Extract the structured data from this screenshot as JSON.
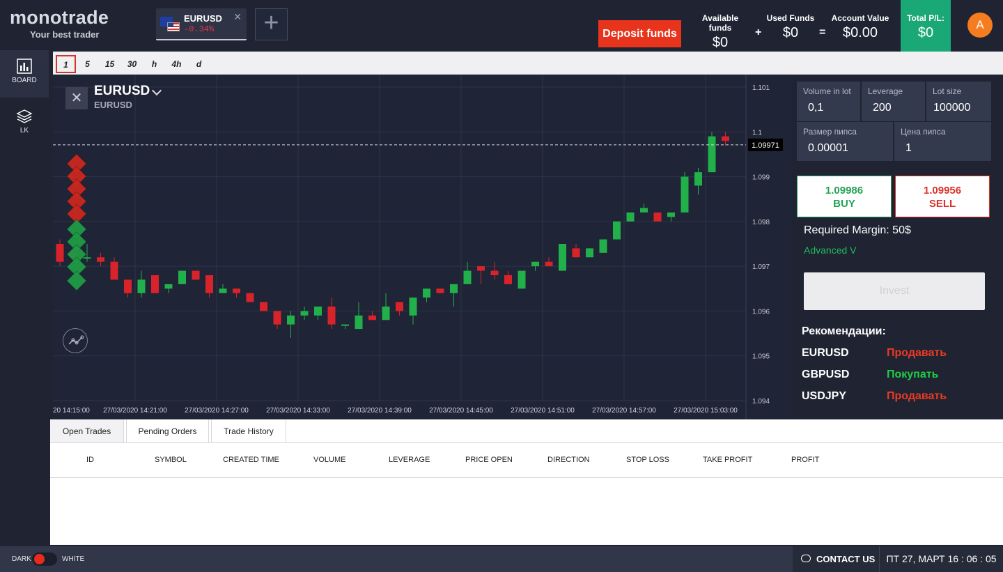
{
  "header": {
    "brand": "monotrade",
    "tagline": "Your best trader",
    "tab": {
      "symbol": "EURUSD",
      "change": "-0.34%",
      "close": "✕"
    },
    "add_tab": "+",
    "deposit_label": "Deposit funds",
    "funds": [
      {
        "label": "Available funds",
        "value": "$0"
      },
      {
        "label": "Used Funds",
        "value": "$0"
      },
      {
        "label": "Account Value",
        "value": "$0.00"
      }
    ],
    "operators": [
      "+",
      "="
    ],
    "pl": {
      "label": "Total P/L:",
      "value": "$0"
    },
    "avatar_letter": "A"
  },
  "sidebar": {
    "items": [
      {
        "label": "BOARD",
        "icon": "bar-chart-icon"
      },
      {
        "label": "LK",
        "icon": "layers-icon"
      }
    ]
  },
  "timeframes": [
    "1",
    "5",
    "15",
    "30",
    "h",
    "4h",
    "d"
  ],
  "chart_header": {
    "symbol": "EURUSD",
    "sub": "EURUSD",
    "close": "✕"
  },
  "chart_data": {
    "type": "candlestick",
    "current_price": "1.09971",
    "y_ticks": [
      "1.101",
      "1.1",
      "1.099",
      "1.098",
      "1.097",
      "1.096",
      "1.095",
      "1.094"
    ],
    "ylim": [
      1.094,
      1.101
    ],
    "x_ticks": [
      "20 14:15:00",
      "27/03/2020 14:21:00",
      "27/03/2020 14:27:00",
      "27/03/2020 14:33:00",
      "27/03/2020 14:39:00",
      "27/03/2020 14:45:00",
      "27/03/2020 14:51:00",
      "27/03/2020 14:57:00",
      "27/03/2020 15:03:00"
    ],
    "candles": [
      {
        "o": 1.0975,
        "h": 1.0976,
        "l": 1.097,
        "c": 1.0971
      },
      {
        "o": 1.0973,
        "h": 1.0974,
        "l": 1.0971,
        "c": 1.0972
      },
      {
        "o": 1.0972,
        "h": 1.0975,
        "l": 1.0971,
        "c": 1.0972
      },
      {
        "o": 1.0972,
        "h": 1.0973,
        "l": 1.097,
        "c": 1.0971
      },
      {
        "o": 1.0971,
        "h": 1.0972,
        "l": 1.0967,
        "c": 1.0967
      },
      {
        "o": 1.0967,
        "h": 1.0967,
        "l": 1.0963,
        "c": 1.0964
      },
      {
        "o": 1.0964,
        "h": 1.0969,
        "l": 1.0963,
        "c": 1.0967
      },
      {
        "o": 1.0968,
        "h": 1.0968,
        "l": 1.0964,
        "c": 1.0964
      },
      {
        "o": 1.0965,
        "h": 1.0966,
        "l": 1.0964,
        "c": 1.0966
      },
      {
        "o": 1.0966,
        "h": 1.0969,
        "l": 1.0966,
        "c": 1.0969
      },
      {
        "o": 1.0969,
        "h": 1.0969,
        "l": 1.0967,
        "c": 1.0967
      },
      {
        "o": 1.0968,
        "h": 1.0968,
        "l": 1.0963,
        "c": 1.0964
      },
      {
        "o": 1.0964,
        "h": 1.0966,
        "l": 1.0964,
        "c": 1.0965
      },
      {
        "o": 1.0965,
        "h": 1.0965,
        "l": 1.0963,
        "c": 1.0964
      },
      {
        "o": 1.0964,
        "h": 1.0964,
        "l": 1.0962,
        "c": 1.0962
      },
      {
        "o": 1.0962,
        "h": 1.0962,
        "l": 1.096,
        "c": 1.096
      },
      {
        "o": 1.096,
        "h": 1.096,
        "l": 1.0956,
        "c": 1.0957
      },
      {
        "o": 1.0957,
        "h": 1.096,
        "l": 1.0954,
        "c": 1.0959
      },
      {
        "o": 1.0959,
        "h": 1.0961,
        "l": 1.0958,
        "c": 1.096
      },
      {
        "o": 1.0959,
        "h": 1.0961,
        "l": 1.0958,
        "c": 1.0961
      },
      {
        "o": 1.0961,
        "h": 1.0963,
        "l": 1.0956,
        "c": 1.0957
      },
      {
        "o": 1.0957,
        "h": 1.0957,
        "l": 1.0956,
        "c": 1.0957
      },
      {
        "o": 1.0956,
        "h": 1.0962,
        "l": 1.0956,
        "c": 1.0959
      },
      {
        "o": 1.0959,
        "h": 1.096,
        "l": 1.0958,
        "c": 1.0958
      },
      {
        "o": 1.0958,
        "h": 1.0964,
        "l": 1.0958,
        "c": 1.0961
      },
      {
        "o": 1.0962,
        "h": 1.0962,
        "l": 1.0959,
        "c": 1.096
      },
      {
        "o": 1.0959,
        "h": 1.0963,
        "l": 1.0957,
        "c": 1.0963
      },
      {
        "o": 1.0963,
        "h": 1.0965,
        "l": 1.0962,
        "c": 1.0965
      },
      {
        "o": 1.0965,
        "h": 1.0965,
        "l": 1.0964,
        "c": 1.0964
      },
      {
        "o": 1.0964,
        "h": 1.0966,
        "l": 1.0961,
        "c": 1.0966
      },
      {
        "o": 1.0966,
        "h": 1.0971,
        "l": 1.0966,
        "c": 1.0969
      },
      {
        "o": 1.097,
        "h": 1.097,
        "l": 1.0966,
        "c": 1.0969
      },
      {
        "o": 1.0969,
        "h": 1.0971,
        "l": 1.0967,
        "c": 1.0968
      },
      {
        "o": 1.0968,
        "h": 1.0969,
        "l": 1.0966,
        "c": 1.0966
      },
      {
        "o": 1.0965,
        "h": 1.0969,
        "l": 1.0965,
        "c": 1.0969
      },
      {
        "o": 1.097,
        "h": 1.0971,
        "l": 1.0969,
        "c": 1.0971
      },
      {
        "o": 1.0971,
        "h": 1.0972,
        "l": 1.097,
        "c": 1.097
      },
      {
        "o": 1.0969,
        "h": 1.0975,
        "l": 1.0969,
        "c": 1.0975
      },
      {
        "o": 1.0974,
        "h": 1.0975,
        "l": 1.0972,
        "c": 1.0972
      },
      {
        "o": 1.0972,
        "h": 1.0974,
        "l": 1.0972,
        "c": 1.0974
      },
      {
        "o": 1.0973,
        "h": 1.0976,
        "l": 1.0973,
        "c": 1.0976
      },
      {
        "o": 1.0976,
        "h": 1.098,
        "l": 1.0976,
        "c": 1.098
      },
      {
        "o": 1.098,
        "h": 1.0982,
        "l": 1.098,
        "c": 1.0982
      },
      {
        "o": 1.0982,
        "h": 1.0984,
        "l": 1.0982,
        "c": 1.0983
      },
      {
        "o": 1.0982,
        "h": 1.0982,
        "l": 1.098,
        "c": 1.098
      },
      {
        "o": 1.0981,
        "h": 1.0982,
        "l": 1.098,
        "c": 1.0982
      },
      {
        "o": 1.0982,
        "h": 1.0991,
        "l": 1.0982,
        "c": 1.099
      },
      {
        "o": 1.0988,
        "h": 1.0992,
        "l": 1.0986,
        "c": 1.0991
      },
      {
        "o": 1.0991,
        "h": 1.1,
        "l": 1.0991,
        "c": 1.0999
      },
      {
        "o": 1.0999,
        "h": 1.1,
        "l": 1.0997,
        "c": 1.0998
      }
    ]
  },
  "params": [
    {
      "label": "Volume in lot",
      "value": "0,1"
    },
    {
      "label": "Leverage",
      "value": "200"
    },
    {
      "label": "Lot size",
      "value": "100000"
    },
    {
      "label": "Размер пипса",
      "value": "0.00001"
    },
    {
      "label": "Цена пипса",
      "value": "1"
    }
  ],
  "buy": {
    "price": "1.09986",
    "label": "BUY"
  },
  "sell": {
    "price": "1.09956",
    "label": "SELL"
  },
  "required_margin": "Required Margin: 50$",
  "advanced": "Advanced V",
  "invest": "Invest",
  "recommendations": {
    "title": "Рекомендации:",
    "items": [
      {
        "symbol": "EURUSD",
        "action": "Продавать",
        "color": "#ec3a23"
      },
      {
        "symbol": "GBPUSD",
        "action": "Покупать",
        "color": "#1fce45"
      },
      {
        "symbol": "USDJPY",
        "action": "Продавать",
        "color": "#ec3a23"
      }
    ]
  },
  "bottom_tabs": [
    "Open Trades",
    "Pending Orders",
    "Trade History"
  ],
  "columns": [
    "ID",
    "SYMBOL",
    "CREATED TIME",
    "VOLUME",
    "LEVERAGE",
    "PRICE OPEN",
    "DIRECTION",
    "STOP LOSS",
    "TAKE PROFIT",
    "PROFIT"
  ],
  "footer": {
    "dark": "DARK",
    "white": "WHITE",
    "contact": "CONTACT US",
    "clock": "ПТ 27, МАРТ 16 : 06 : 05"
  },
  "colors": {
    "up": "#22b04a",
    "down": "#d9232a",
    "accent": "#e8341c",
    "pl_bg": "#1aa877"
  }
}
